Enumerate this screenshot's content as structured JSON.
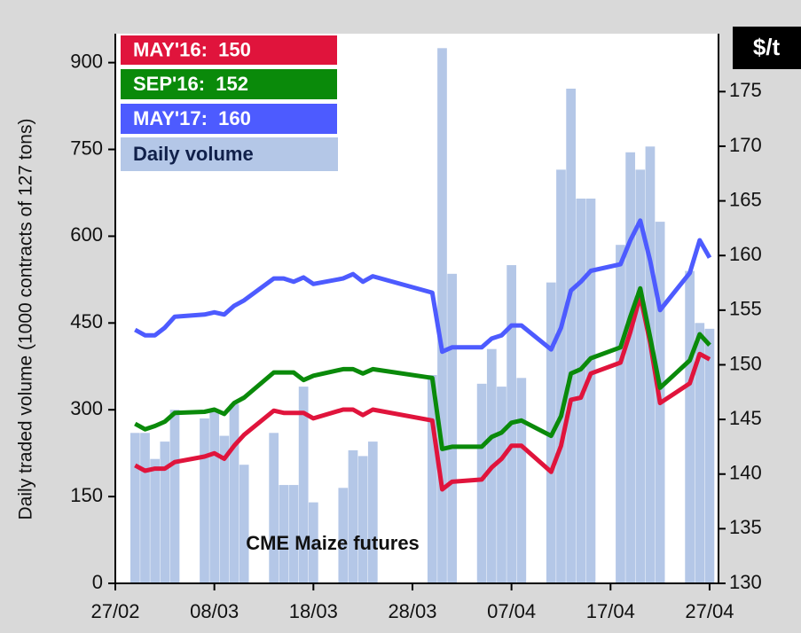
{
  "chart_data": {
    "type": "bar",
    "y_label": "Daily traded volume (1000 contracts of 127 tons)",
    "y2_label": "$/t",
    "annotation": "CME Maize futures",
    "x": [
      2,
      3,
      4,
      5,
      6,
      9,
      10,
      11,
      12,
      13,
      16,
      17,
      18,
      19,
      20,
      23,
      24,
      25,
      26,
      32,
      33,
      34,
      37,
      38,
      39,
      40,
      41,
      44,
      45,
      46,
      47,
      48,
      51,
      52,
      53,
      54,
      55,
      58,
      59,
      60
    ],
    "xlim": [
      0,
      60.9
    ],
    "xticks": [
      {
        "value": 0,
        "label": "27/02"
      },
      {
        "value": 10,
        "label": "08/03"
      },
      {
        "value": 20,
        "label": "18/03"
      },
      {
        "value": 30,
        "label": "28/03"
      },
      {
        "value": 40,
        "label": "07/04"
      },
      {
        "value": 50,
        "label": "17/04"
      },
      {
        "value": 60,
        "label": "27/04"
      }
    ],
    "ylim": [
      0,
      950
    ],
    "yticks": [
      0,
      150,
      300,
      450,
      600,
      750,
      900
    ],
    "y2lim": [
      130,
      180.3
    ],
    "y2ticks": [
      130,
      135,
      140,
      145,
      150,
      155,
      160,
      165,
      170,
      175
    ],
    "series": [
      {
        "name": "MAY'16:  150",
        "type": "line",
        "axis": "y2",
        "color": "#e0143c",
        "values": [
          140.8,
          140.3,
          140.5,
          140.5,
          141.1,
          141.6,
          141.9,
          141.4,
          142.6,
          143.6,
          145.8,
          145.6,
          145.6,
          145.6,
          145.1,
          145.9,
          145.9,
          145.4,
          145.9,
          144.9,
          138.6,
          139.3,
          139.5,
          140.6,
          141.4,
          142.6,
          142.6,
          140.2,
          142.6,
          146.8,
          147,
          149.2,
          150.2,
          153,
          156.3,
          152,
          146.5,
          148.3,
          151,
          150.5
        ]
      },
      {
        "name": "SEP'16:  152",
        "type": "line",
        "axis": "y2",
        "color": "#0a8a0a",
        "values": [
          144.6,
          144.1,
          144.4,
          144.8,
          145.6,
          145.7,
          145.9,
          145.5,
          146.5,
          147,
          149.3,
          149.3,
          149.3,
          148.6,
          149,
          149.6,
          149.6,
          149.2,
          149.6,
          148.8,
          142.3,
          142.5,
          142.5,
          143.4,
          143.8,
          144.7,
          144.9,
          143.5,
          145.3,
          149.2,
          149.6,
          150.6,
          151.6,
          154.4,
          157,
          152.5,
          147.9,
          150.4,
          152.8,
          151.8
        ]
      },
      {
        "name": "MAY'17:  160",
        "type": "line",
        "axis": "y2",
        "color": "#4d5bff",
        "values": [
          153.2,
          152.7,
          152.7,
          153.4,
          154.4,
          154.6,
          154.8,
          154.6,
          155.4,
          155.9,
          157.9,
          157.9,
          157.6,
          158,
          157.4,
          157.9,
          158.3,
          157.6,
          158.1,
          156.6,
          151.2,
          151.6,
          151.6,
          152.4,
          152.7,
          153.6,
          153.6,
          151.4,
          153.4,
          156.8,
          157.6,
          158.6,
          159.2,
          161.4,
          163.2,
          159.5,
          155,
          158.4,
          161.4,
          159.8
        ]
      },
      {
        "name": "Daily volume",
        "type": "bar",
        "color": "#b4c7e7",
        "values": [
          260,
          260,
          215,
          245,
          300,
          285,
          300,
          255,
          310,
          205,
          260,
          170,
          170,
          340,
          140,
          165,
          230,
          220,
          245,
          360,
          925,
          535,
          345,
          405,
          340,
          550,
          355,
          520,
          715,
          855,
          665,
          665,
          585,
          745,
          715,
          755,
          625,
          540,
          450,
          440
        ]
      }
    ]
  }
}
